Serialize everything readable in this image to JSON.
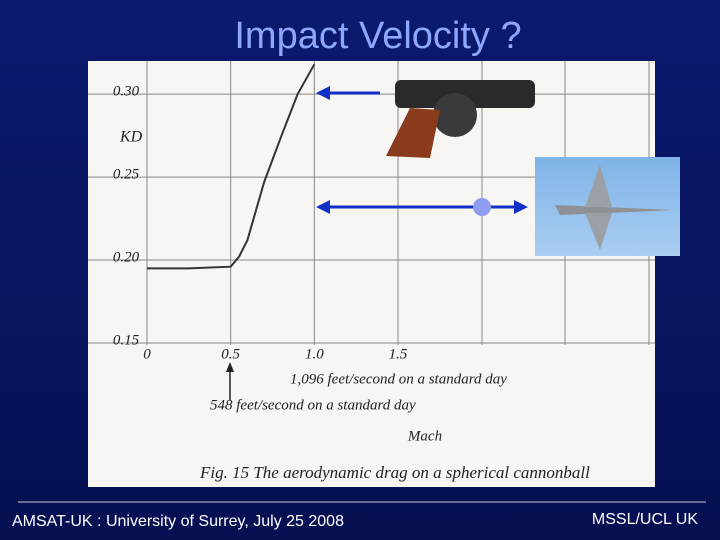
{
  "slide_title": "Impact Velocity ?",
  "chart_data": {
    "type": "line",
    "y_label": "KD",
    "x_label": "Mach",
    "caption": "Fig. 15  The aerodynamic drag on a spherical cannonball",
    "annotations": [
      "1,096 feet/second on a standard day",
      "548 feet/second on a standard day"
    ],
    "x": [
      0,
      0.25,
      0.5,
      0.55,
      0.6,
      0.7,
      0.8,
      0.9,
      1.0
    ],
    "series": [
      {
        "name": "KD",
        "color": "#333333",
        "values": [
          0.195,
          0.195,
          0.196,
          0.202,
          0.212,
          0.247,
          0.274,
          0.3,
          0.318
        ]
      }
    ],
    "xlim": [
      0,
      3
    ],
    "ylim": [
      0.15,
      0.32
    ],
    "xticks": [
      0,
      0.5,
      {
        "value": 1,
        "label": "1.0"
      },
      1.5
    ],
    "yticks": [
      0.15,
      {
        "value": 0.2,
        "label": "0.20"
      },
      0.25,
      {
        "value": 0.3,
        "label": "0.30"
      }
    ],
    "grid": true
  },
  "footer": {
    "left": "AMSAT-UK :  University of Surrey, July 25 2008",
    "right": "MSSL/UCL UK"
  }
}
